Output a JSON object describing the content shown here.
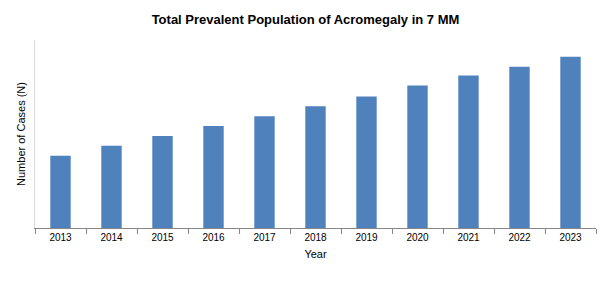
{
  "chart_data": {
    "type": "bar",
    "title": "Total Prevalent Population of Acromegaly in 7 MM",
    "x_label": "Year",
    "y_label": "Number of Cases (N)",
    "categories": [
      "2013",
      "2014",
      "2015",
      "2016",
      "2017",
      "2018",
      "2019",
      "2020",
      "2021",
      "2022",
      "2023"
    ],
    "values": [
      73,
      83,
      93,
      103,
      113,
      123,
      133,
      144,
      154,
      163,
      173
    ],
    "color": "#4f81bd",
    "ylim": [
      0,
      190
    ],
    "grid": false,
    "tick_labels": "x"
  }
}
